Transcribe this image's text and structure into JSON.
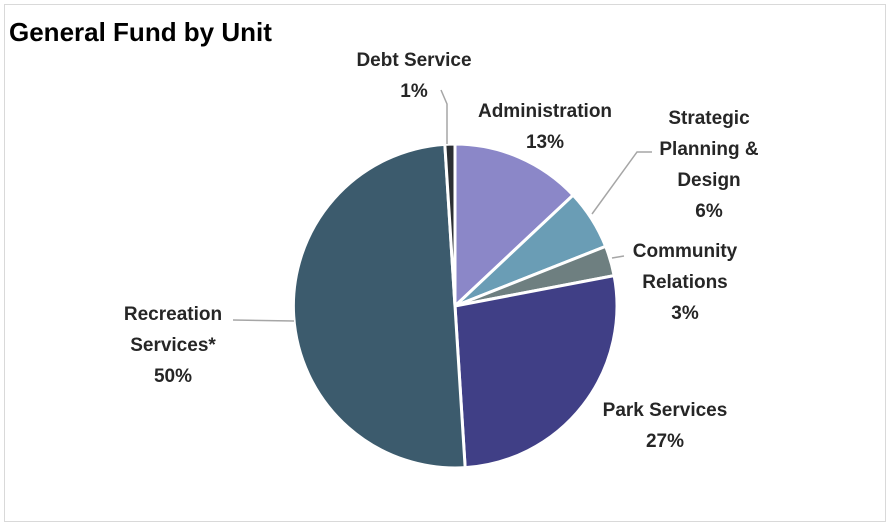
{
  "chart_data": {
    "type": "pie",
    "title": "General Fund by Unit",
    "slices": [
      {
        "name_lines": [
          "Administration"
        ],
        "value": 13,
        "value_label": "13%",
        "color": "#8b87c8"
      },
      {
        "name_lines": [
          "Strategic",
          "Planning &",
          "Design"
        ],
        "value": 6,
        "value_label": "6%",
        "color": "#6a9db5"
      },
      {
        "name_lines": [
          "Community",
          "Relations"
        ],
        "value": 3,
        "value_label": "3%",
        "color": "#6e7f80"
      },
      {
        "name_lines": [
          "Park Services"
        ],
        "value": 27,
        "value_label": "27%",
        "color": "#403f86"
      },
      {
        "name_lines": [
          "Recreation",
          "Services*"
        ],
        "value": 50,
        "value_label": "50%",
        "color": "#3c5b6d"
      },
      {
        "name_lines": [
          "Debt Service"
        ],
        "value": 1,
        "value_label": "1%",
        "color": "#2b2f33"
      }
    ]
  }
}
